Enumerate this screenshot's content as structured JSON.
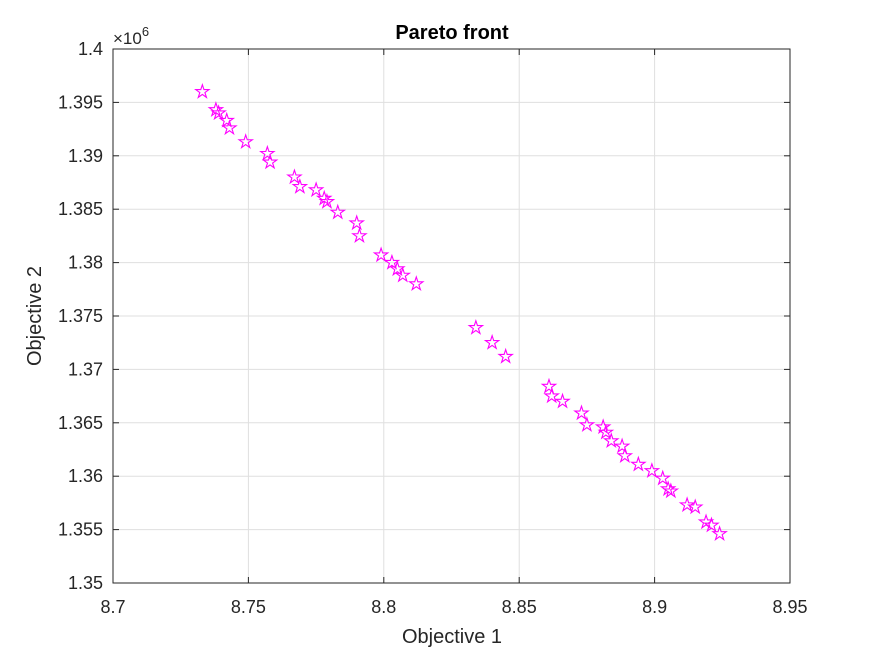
{
  "chart_data": {
    "type": "scatter",
    "title": "Pareto front",
    "xlabel": "Objective 1",
    "ylabel": "Objective 2",
    "xlim": [
      8.7,
      8.95
    ],
    "ylim": [
      1.35,
      1.4
    ],
    "y_exponent_label": "×10",
    "y_exponent_power": "6",
    "xticks": [
      "8.7",
      "8.75",
      "8.8",
      "8.85",
      "8.9",
      "8.95"
    ],
    "yticks": [
      "1.35",
      "1.355",
      "1.36",
      "1.365",
      "1.37",
      "1.375",
      "1.38",
      "1.385",
      "1.39",
      "1.395",
      "1.4"
    ],
    "grid": true,
    "marker": "pentagram",
    "color": "#ff00ff",
    "series": [
      {
        "x": [
          8.733,
          8.738,
          8.739,
          8.742,
          8.743,
          8.749,
          8.757,
          8.758,
          8.767,
          8.769,
          8.775,
          8.778,
          8.779,
          8.783,
          8.79,
          8.791,
          8.799,
          8.803,
          8.805,
          8.807,
          8.812,
          8.834,
          8.84,
          8.845,
          8.861,
          8.862,
          8.866,
          8.873,
          8.875,
          8.881,
          8.882,
          8.884,
          8.888,
          8.889,
          8.894,
          8.899,
          8.903,
          8.905,
          8.906,
          8.912,
          8.915,
          8.919,
          8.921,
          8.924
        ],
        "y": [
          1.396,
          1.3943,
          1.394,
          1.3933,
          1.3926,
          1.3913,
          1.3902,
          1.3894,
          1.388,
          1.3871,
          1.3868,
          1.386,
          1.3857,
          1.3847,
          1.3837,
          1.3825,
          1.3807,
          1.38,
          1.3794,
          1.3788,
          1.378,
          1.3739,
          1.3725,
          1.3712,
          1.3684,
          1.3675,
          1.367,
          1.3659,
          1.3648,
          1.3646,
          1.3641,
          1.3633,
          1.3628,
          1.3619,
          1.3611,
          1.3605,
          1.3598,
          1.3588,
          1.3586,
          1.3573,
          1.3571,
          1.3557,
          1.3554,
          1.3546
        ]
      }
    ]
  }
}
